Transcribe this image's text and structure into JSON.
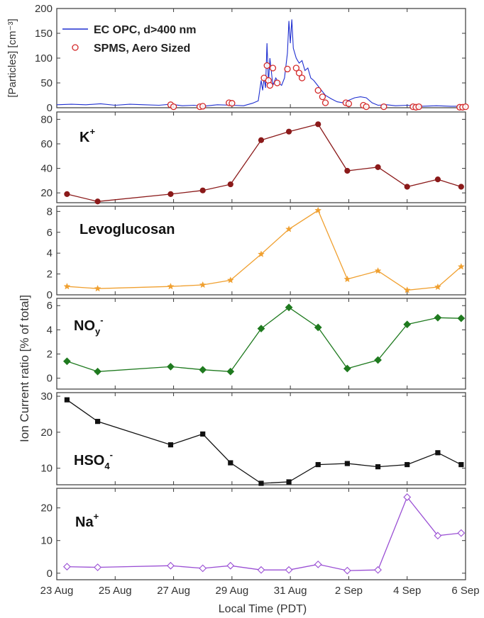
{
  "chart_data": {
    "type": "line",
    "x_axis": {
      "label": "Local Time (PDT)",
      "ticks": [
        {
          "day": 0,
          "label": "23 Aug"
        },
        {
          "day": 2,
          "label": "25 Aug"
        },
        {
          "day": 4,
          "label": "27 Aug"
        },
        {
          "day": 6,
          "label": "29 Aug"
        },
        {
          "day": 8,
          "label": "31 Aug"
        },
        {
          "day": 10,
          "label": "2 Sep"
        },
        {
          "day": 12,
          "label": "4 Sep"
        },
        {
          "day": 14,
          "label": "6 Sep"
        }
      ]
    },
    "shared_ylabel": "Ion Current ratio [% of total]",
    "sample_days": [
      0.35,
      1.4,
      3.9,
      5.0,
      5.95,
      7.0,
      7.95,
      8.95,
      9.95,
      11.0,
      12.0,
      13.05,
      13.85
    ],
    "panels": [
      {
        "id": "particles",
        "ylabel": "[Particles] [cm⁻³]",
        "ylim": [
          0,
          200
        ],
        "yticks": [
          0,
          50,
          100,
          150,
          200
        ],
        "legend": [
          {
            "label": "EC OPC, d>400 nm",
            "marker": "line",
            "color": "#1f2fd0"
          },
          {
            "label": "SPMS, Aero Sized",
            "marker": "open-circle",
            "color": "#d42a2a"
          }
        ],
        "series": [
          {
            "name": "EC OPC, d>400 nm",
            "color": "#1f2fd0",
            "points": [
              [
                0,
                6
              ],
              [
                0.5,
                7
              ],
              [
                1.0,
                6
              ],
              [
                1.5,
                8
              ],
              [
                2.0,
                5
              ],
              [
                2.5,
                7
              ],
              [
                3.0,
                6
              ],
              [
                3.5,
                5
              ],
              [
                3.9,
                7
              ],
              [
                4.3,
                4
              ],
              [
                4.7,
                5
              ],
              [
                5.0,
                3
              ],
              [
                5.5,
                6
              ],
              [
                6.0,
                5
              ],
              [
                6.4,
                4
              ],
              [
                6.7,
                9
              ],
              [
                6.9,
                14
              ],
              [
                7.0,
                55
              ],
              [
                7.05,
                35
              ],
              [
                7.1,
                60
              ],
              [
                7.15,
                40
              ],
              [
                7.2,
                130
              ],
              [
                7.25,
                50
              ],
              [
                7.3,
                100
              ],
              [
                7.4,
                45
              ],
              [
                7.5,
                60
              ],
              [
                7.6,
                50
              ],
              [
                7.7,
                45
              ],
              [
                7.8,
                60
              ],
              [
                7.9,
                110
              ],
              [
                7.95,
                175
              ],
              [
                8.0,
                130
              ],
              [
                8.05,
                178
              ],
              [
                8.1,
                120
              ],
              [
                8.2,
                100
              ],
              [
                8.3,
                90
              ],
              [
                8.4,
                95
              ],
              [
                8.5,
                75
              ],
              [
                8.6,
                80
              ],
              [
                8.7,
                60
              ],
              [
                8.8,
                55
              ],
              [
                9.0,
                40
              ],
              [
                9.2,
                25
              ],
              [
                9.4,
                18
              ],
              [
                9.6,
                12
              ],
              [
                9.8,
                10
              ],
              [
                10.0,
                15
              ],
              [
                10.2,
                20
              ],
              [
                10.4,
                22
              ],
              [
                10.6,
                20
              ],
              [
                10.8,
                10
              ],
              [
                11.0,
                5
              ],
              [
                11.3,
                6
              ],
              [
                11.6,
                4
              ],
              [
                12.0,
                5
              ],
              [
                12.5,
                3
              ],
              [
                13.0,
                4
              ],
              [
                13.5,
                3
              ],
              [
                14.0,
                3
              ]
            ]
          },
          {
            "name": "SPMS, Aero Sized",
            "color": "#d42a2a",
            "points": [
              [
                3.9,
                6
              ],
              [
                4.0,
                2
              ],
              [
                4.9,
                2
              ],
              [
                5.0,
                3
              ],
              [
                5.9,
                10
              ],
              [
                6.0,
                9
              ],
              [
                7.1,
                60
              ],
              [
                7.2,
                85
              ],
              [
                7.25,
                55
              ],
              [
                7.3,
                45
              ],
              [
                7.4,
                80
              ],
              [
                7.55,
                50
              ],
              [
                7.9,
                78
              ],
              [
                8.2,
                80
              ],
              [
                8.3,
                70
              ],
              [
                8.4,
                60
              ],
              [
                8.95,
                35
              ],
              [
                9.1,
                22
              ],
              [
                9.2,
                10
              ],
              [
                9.9,
                10
              ],
              [
                10.0,
                8
              ],
              [
                10.5,
                5
              ],
              [
                10.6,
                2
              ],
              [
                11.2,
                2
              ],
              [
                12.2,
                2
              ],
              [
                12.3,
                1
              ],
              [
                12.4,
                2
              ],
              [
                13.8,
                1
              ],
              [
                13.9,
                1
              ],
              [
                14.0,
                2
              ]
            ]
          }
        ]
      },
      {
        "id": "k",
        "label": "K",
        "label_sup": "+",
        "ylim": [
          12,
          86
        ],
        "yticks": [
          20,
          40,
          60,
          80
        ],
        "series": [
          {
            "color": "#8b1a1a",
            "marker": "circle",
            "values": [
              19,
              13,
              19,
              22,
              27,
              63,
              70,
              76,
              38,
              41,
              25,
              31,
              25
            ]
          }
        ]
      },
      {
        "id": "levo",
        "label": "Levoglucosan",
        "ylim": [
          0,
          8.5
        ],
        "yticks": [
          0,
          2,
          4,
          6,
          8
        ],
        "series": [
          {
            "color": "#f0a030",
            "marker": "star",
            "values": [
              0.8,
              0.6,
              0.8,
              0.95,
              1.4,
              3.9,
              6.3,
              8.1,
              1.5,
              2.3,
              0.45,
              0.75,
              2.7
            ]
          }
        ]
      },
      {
        "id": "noy",
        "label": "NO",
        "label_sub": "y",
        "label_sup": "-",
        "ylim": [
          -0.9,
          6.6
        ],
        "yticks": [
          0,
          2,
          4,
          6
        ],
        "series": [
          {
            "color": "#1f7a1f",
            "marker": "diamond",
            "values": [
              1.4,
              0.55,
              0.95,
              0.7,
              0.55,
              4.1,
              5.85,
              4.2,
              0.8,
              1.5,
              4.45,
              5.0,
              4.95
            ]
          }
        ]
      },
      {
        "id": "hso4",
        "label": "HSO",
        "label_sub": "4",
        "label_sup": "-",
        "ylim": [
          5.4,
          31
        ],
        "yticks": [
          10,
          20,
          30
        ],
        "series": [
          {
            "color": "#111111",
            "marker": "square",
            "values": [
              29,
              23,
              16.5,
              19.5,
              11.5,
              5.8,
              6.2,
              11,
              11.3,
              10.4,
              11,
              14.3,
              11
            ]
          }
        ]
      },
      {
        "id": "na",
        "label": "Na",
        "label_sup": "+",
        "ylim": [
          -2,
          26
        ],
        "yticks": [
          0,
          10,
          20
        ],
        "series": [
          {
            "color": "#9a4fd4",
            "marker": "open-diamond",
            "values": [
              2.0,
              1.8,
              2.3,
              1.5,
              2.3,
              1.0,
              1.0,
              2.7,
              0.8,
              1.0,
              23.3,
              11.5,
              12.3
            ]
          }
        ]
      }
    ]
  }
}
